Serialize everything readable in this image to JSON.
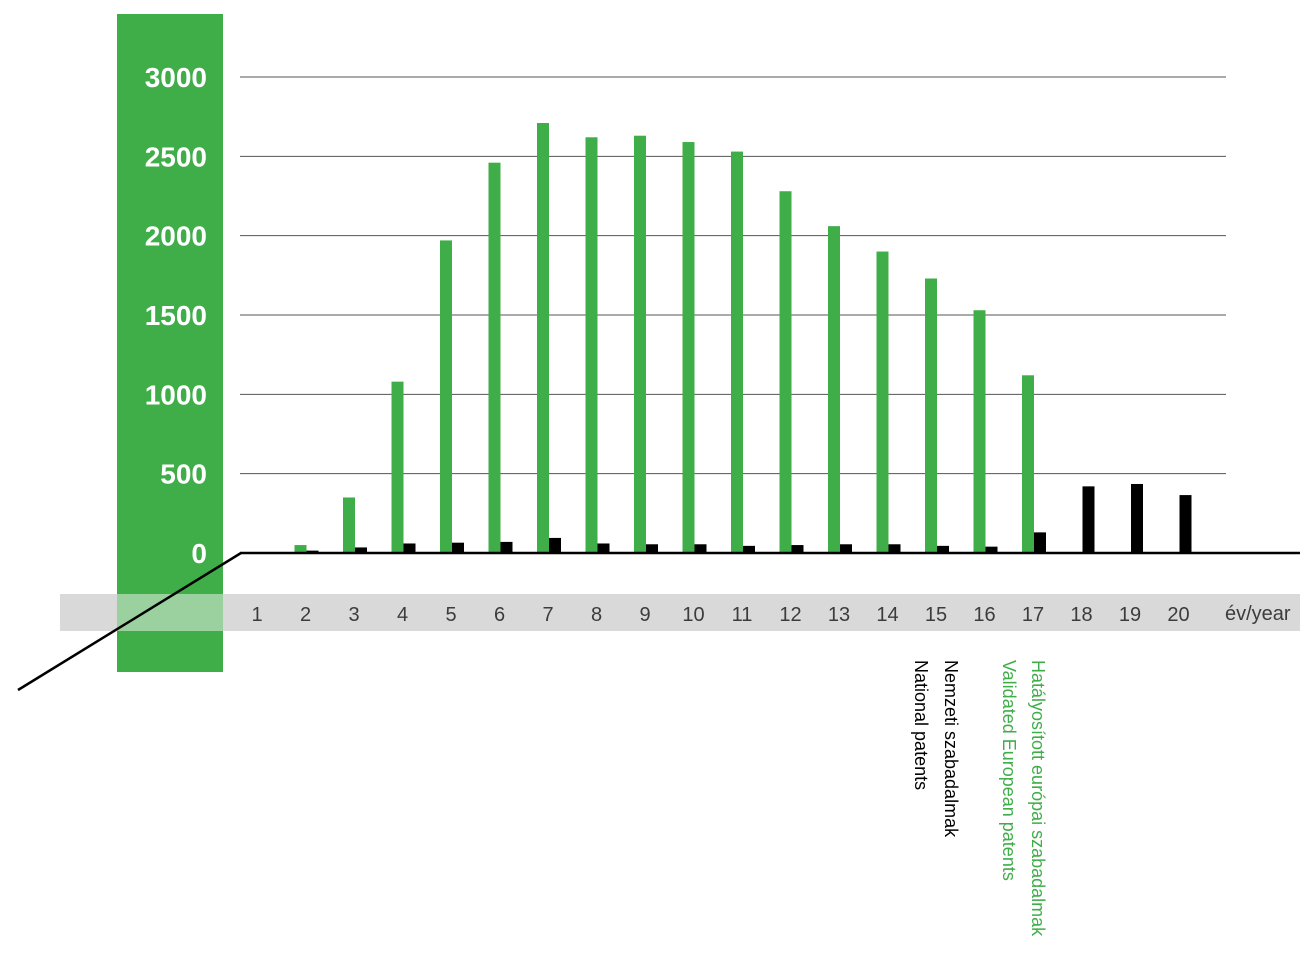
{
  "chart_data": {
    "type": "bar",
    "categories": [
      "1",
      "2",
      "3",
      "4",
      "5",
      "6",
      "7",
      "8",
      "9",
      "10",
      "11",
      "12",
      "13",
      "14",
      "15",
      "16",
      "17",
      "18",
      "19",
      "20"
    ],
    "xlabel": "év/year",
    "ylabel": "",
    "ylim": [
      0,
      3000
    ],
    "yticks": [
      "0",
      "500",
      "1000",
      "1500",
      "2000",
      "2500",
      "3000"
    ],
    "grid": true,
    "legend_position": "bottom-right, vertical text",
    "series": [
      {
        "name": "Hatályosított európai szabadalmak",
        "name_en": "Validated European patents",
        "color": "#3fae49",
        "values": [
          0,
          50,
          350,
          1080,
          1970,
          2460,
          2710,
          2620,
          2630,
          2590,
          2530,
          2280,
          2060,
          1900,
          1730,
          1530,
          1120,
          0,
          0,
          0
        ]
      },
      {
        "name": "Nemzeti szabadalmak",
        "name_en": "National patents",
        "color": "#000000",
        "values": [
          0,
          15,
          35,
          60,
          65,
          70,
          95,
          60,
          55,
          55,
          45,
          50,
          55,
          55,
          45,
          40,
          130,
          420,
          435,
          365
        ]
      }
    ]
  },
  "colors": {
    "accent_green": "#3fae49",
    "axis_band_gray": "#d9d9d9",
    "gridline": "#555555"
  }
}
